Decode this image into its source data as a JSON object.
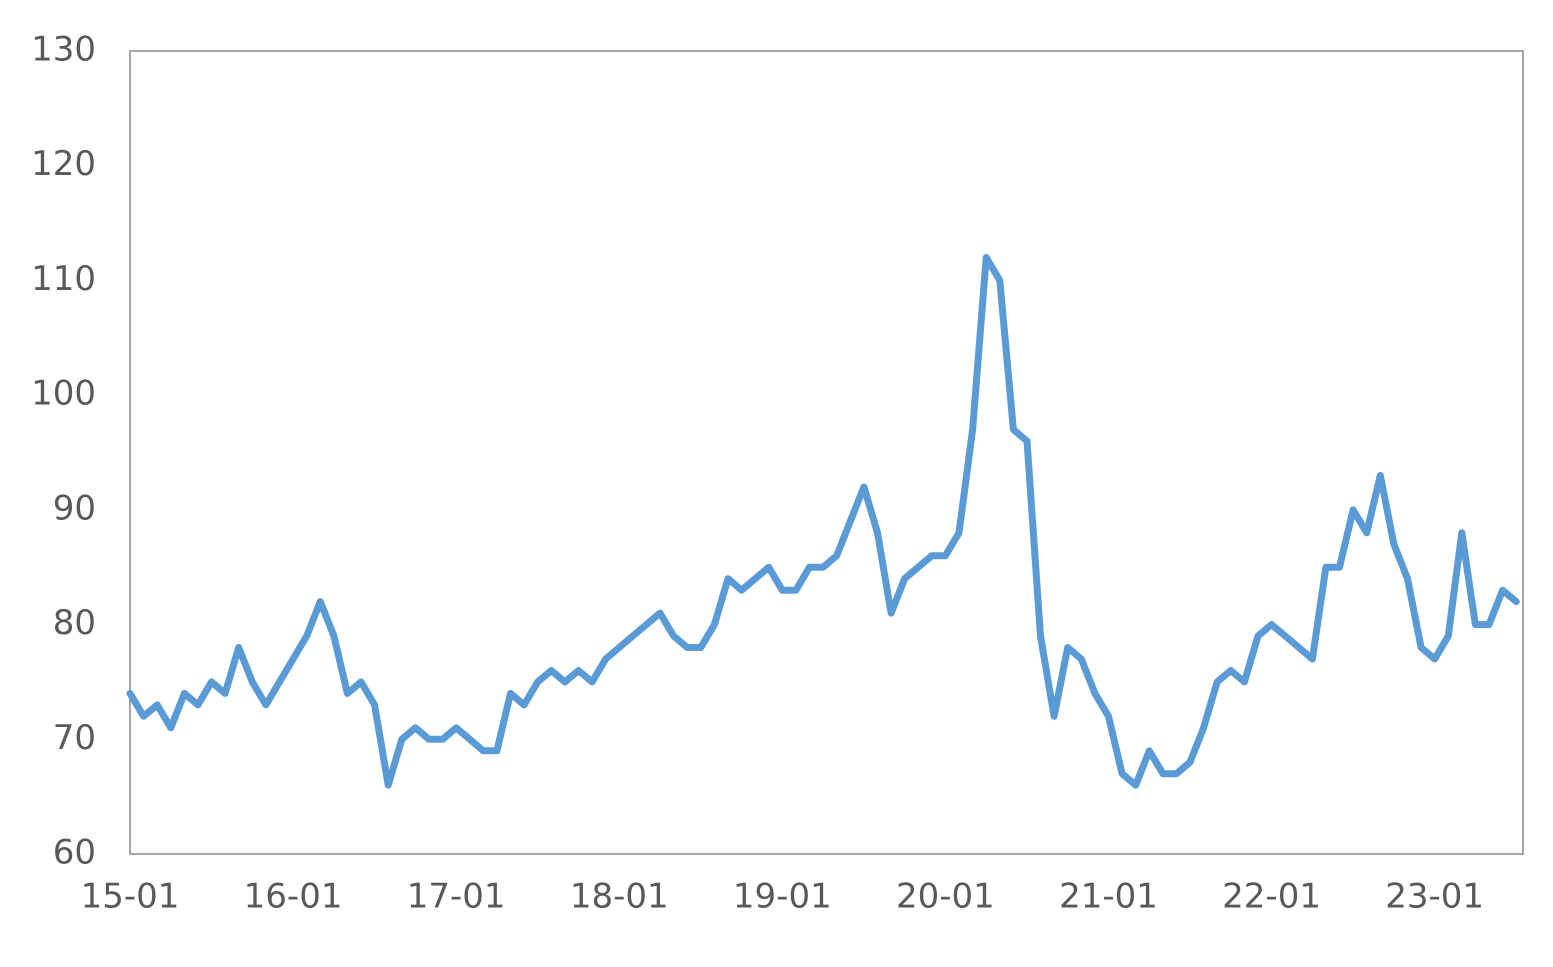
{
  "chart_data": {
    "type": "line",
    "color": "#5b9bd5",
    "categories": [
      "15-01",
      null,
      null,
      null,
      null,
      null,
      null,
      null,
      null,
      null,
      null,
      null,
      "16-01",
      null,
      null,
      null,
      null,
      null,
      null,
      null,
      null,
      null,
      null,
      null,
      "17-01",
      null,
      null,
      null,
      null,
      null,
      null,
      null,
      null,
      null,
      null,
      null,
      "18-01",
      null,
      null,
      null,
      null,
      null,
      null,
      null,
      null,
      null,
      null,
      null,
      "19-01",
      null,
      null,
      null,
      null,
      null,
      null,
      null,
      null,
      null,
      null,
      null,
      "20-01",
      null,
      null,
      null,
      null,
      null,
      null,
      null,
      null,
      null,
      null,
      null,
      "21-01",
      null,
      null,
      null,
      null,
      null,
      null,
      null,
      null,
      null,
      null,
      null,
      "22-01",
      null,
      null,
      null,
      null,
      null,
      null,
      null,
      null,
      null,
      null,
      null,
      "23-01",
      null,
      null,
      null,
      null,
      null,
      null
    ],
    "values": [
      74,
      72,
      73,
      71,
      74,
      73,
      75,
      74,
      78,
      75,
      73,
      75,
      77,
      79,
      82,
      79,
      74,
      75,
      73,
      66,
      70,
      71,
      70,
      70,
      71,
      70,
      69,
      69,
      74,
      73,
      75,
      76,
      75,
      76,
      75,
      77,
      78,
      79,
      80,
      81,
      79,
      78,
      78,
      80,
      84,
      83,
      84,
      85,
      83,
      83,
      85,
      85,
      86,
      89,
      92,
      88,
      81,
      84,
      85,
      86,
      86,
      88,
      97,
      112,
      110,
      97,
      96,
      79,
      72,
      78,
      77,
      74,
      72,
      67,
      66,
      69,
      67,
      67,
      68,
      71,
      75,
      76,
      75,
      79,
      80,
      79,
      78,
      77,
      85,
      85,
      90,
      88,
      93,
      87,
      84,
      78,
      77,
      79,
      88,
      80,
      80,
      83,
      82
    ],
    "ylim": [
      60,
      130
    ],
    "yticks": [
      60,
      70,
      80,
      90,
      100,
      110,
      120,
      130
    ],
    "grid": false
  }
}
